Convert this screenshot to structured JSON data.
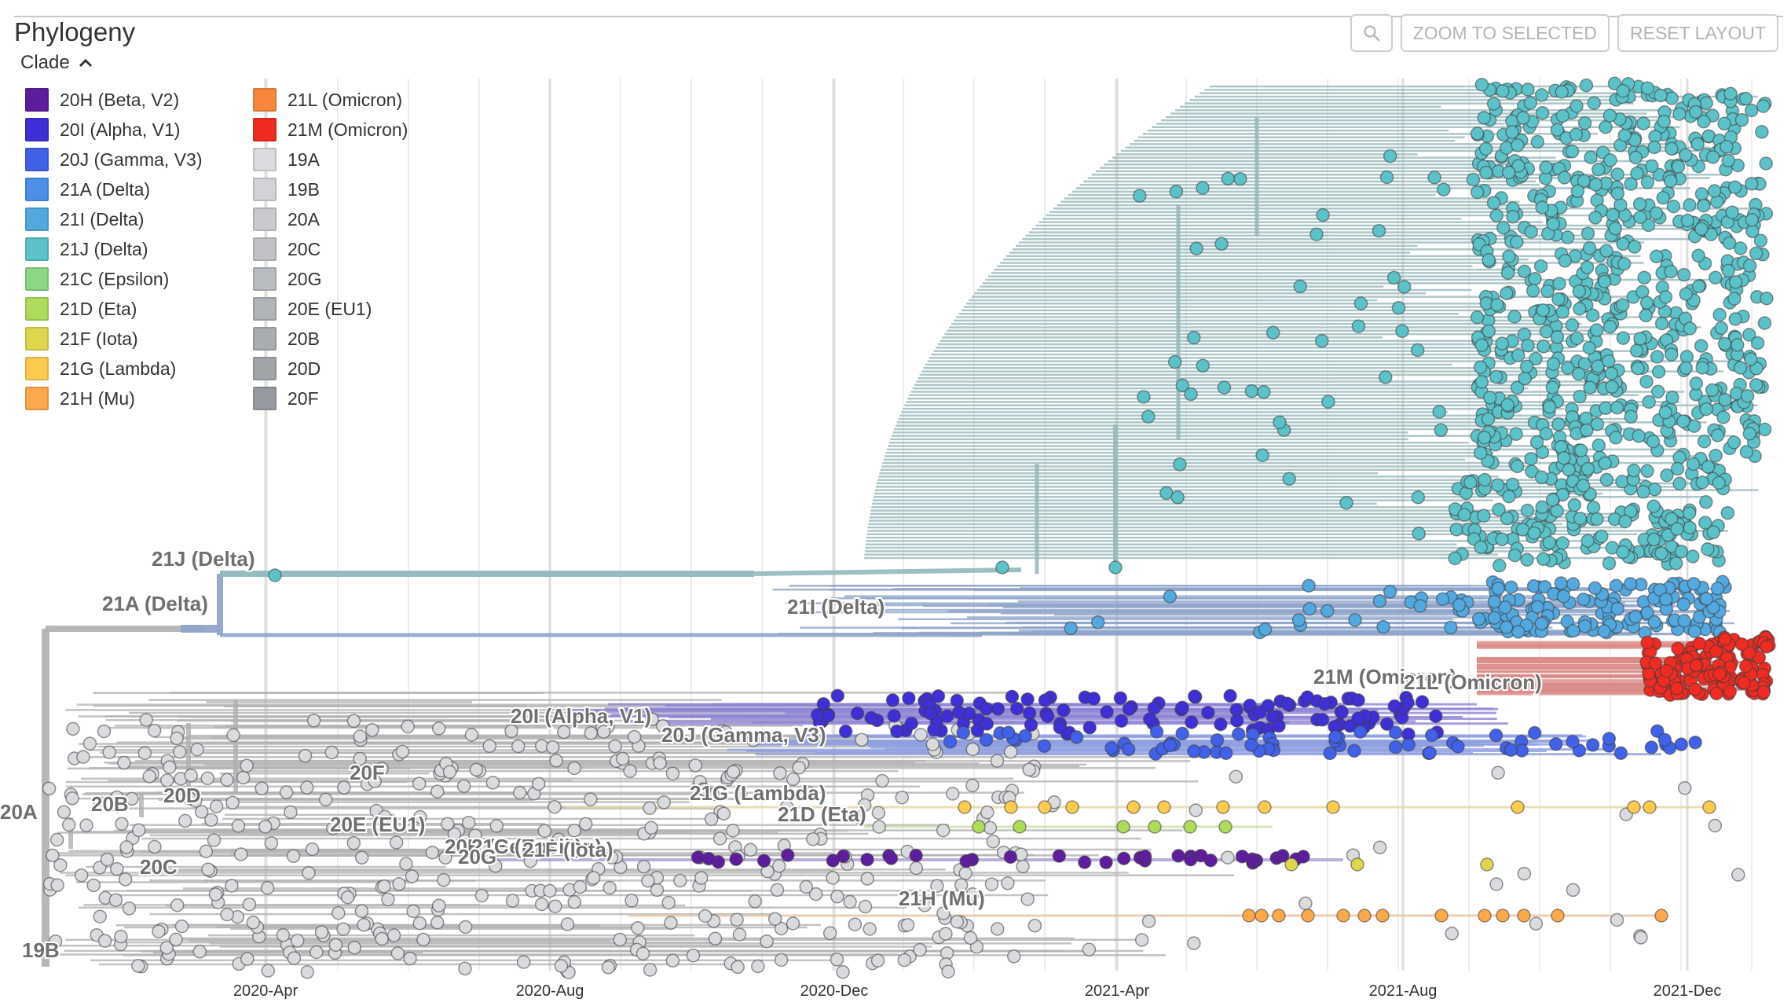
{
  "panel": {
    "title": "Phylogeny",
    "legend_toggle_label": "Clade"
  },
  "toolbar": {
    "zoom_icon": "magnifier-icon",
    "zoom_to_selected_label": "ZOOM TO SELECTED",
    "reset_layout_label": "RESET LAYOUT"
  },
  "legend": [
    {
      "label": "20H (Beta, V2)",
      "color": "#5E1D9D"
    },
    {
      "label": "20I (Alpha, V1)",
      "color": "#3F2FD6"
    },
    {
      "label": "20J (Gamma, V3)",
      "color": "#4061E8"
    },
    {
      "label": "21A (Delta)",
      "color": "#4C8FE8"
    },
    {
      "label": "21I (Delta)",
      "color": "#52A8DF"
    },
    {
      "label": "21J (Delta)",
      "color": "#5CC2C9"
    },
    {
      "label": "21C (Epsilon)",
      "color": "#8CD685"
    },
    {
      "label": "21D (Eta)",
      "color": "#AEDB5A"
    },
    {
      "label": "21F (Iota)",
      "color": "#DED74E"
    },
    {
      "label": "21G (Lambda)",
      "color": "#FBCB4E"
    },
    {
      "label": "21H (Mu)",
      "color": "#FBA94A"
    },
    {
      "label": "21L (Omicron)",
      "color": "#F8873D"
    },
    {
      "label": "21M (Omicron)",
      "color": "#F02B22"
    },
    {
      "label": "19A",
      "color": "#DADBDE"
    },
    {
      "label": "19B",
      "color": "#D1D3D6"
    },
    {
      "label": "20A",
      "color": "#C8CACE"
    },
    {
      "label": "20C",
      "color": "#C0C2C6"
    },
    {
      "label": "20G",
      "color": "#B8BBBF"
    },
    {
      "label": "20E (EU1)",
      "color": "#B0B3B7"
    },
    {
      "label": "20B",
      "color": "#A9ACB0"
    },
    {
      "label": "20D",
      "color": "#A0A3A8"
    },
    {
      "label": "20F",
      "color": "#96999F"
    }
  ],
  "tree_labels": {
    "c21J": "21J (Delta)",
    "c21A": "21A (Delta)",
    "c21I": "21I (Delta)",
    "c21M": "21M (Omicron)",
    "c21L": "21L (Omicron)",
    "c20I": "20I (Alpha, V1)",
    "c20J": "20J (Gamma, V3)",
    "c20F": "20F",
    "c20D": "20D",
    "c20B": "20B",
    "c20A": "20A",
    "c21G": "21G (Lambda)",
    "c20E": "20E (EU1)",
    "c21D": "21D (Eta)",
    "c20H": "20H (Beta, V2)",
    "c21C": "21C (Epsilon)",
    "c20G": "20G",
    "c21F": "21F (Iota)",
    "c20C": "20C",
    "c21H": "21H (Mu)",
    "c19B": "19B"
  },
  "axis": {
    "ticks": [
      "2020-Apr",
      "2020-Aug",
      "2020-Dec",
      "2021-Apr",
      "2021-Aug",
      "2021-Dec"
    ]
  },
  "colors": {
    "delta_21J": "#5CC2C9",
    "delta_21I": "#52A8DF",
    "omicron": "#F02B22",
    "alpha": "#3F2FD6",
    "gamma": "#4061E8",
    "beta": "#5E1D9D",
    "lambda": "#FBCB4E",
    "eta": "#AEDB5A",
    "mu": "#FBA94A",
    "iota": "#DED74E",
    "grey_tip": "#D9DBDE",
    "branch_grey": "#AFAFAF"
  }
}
